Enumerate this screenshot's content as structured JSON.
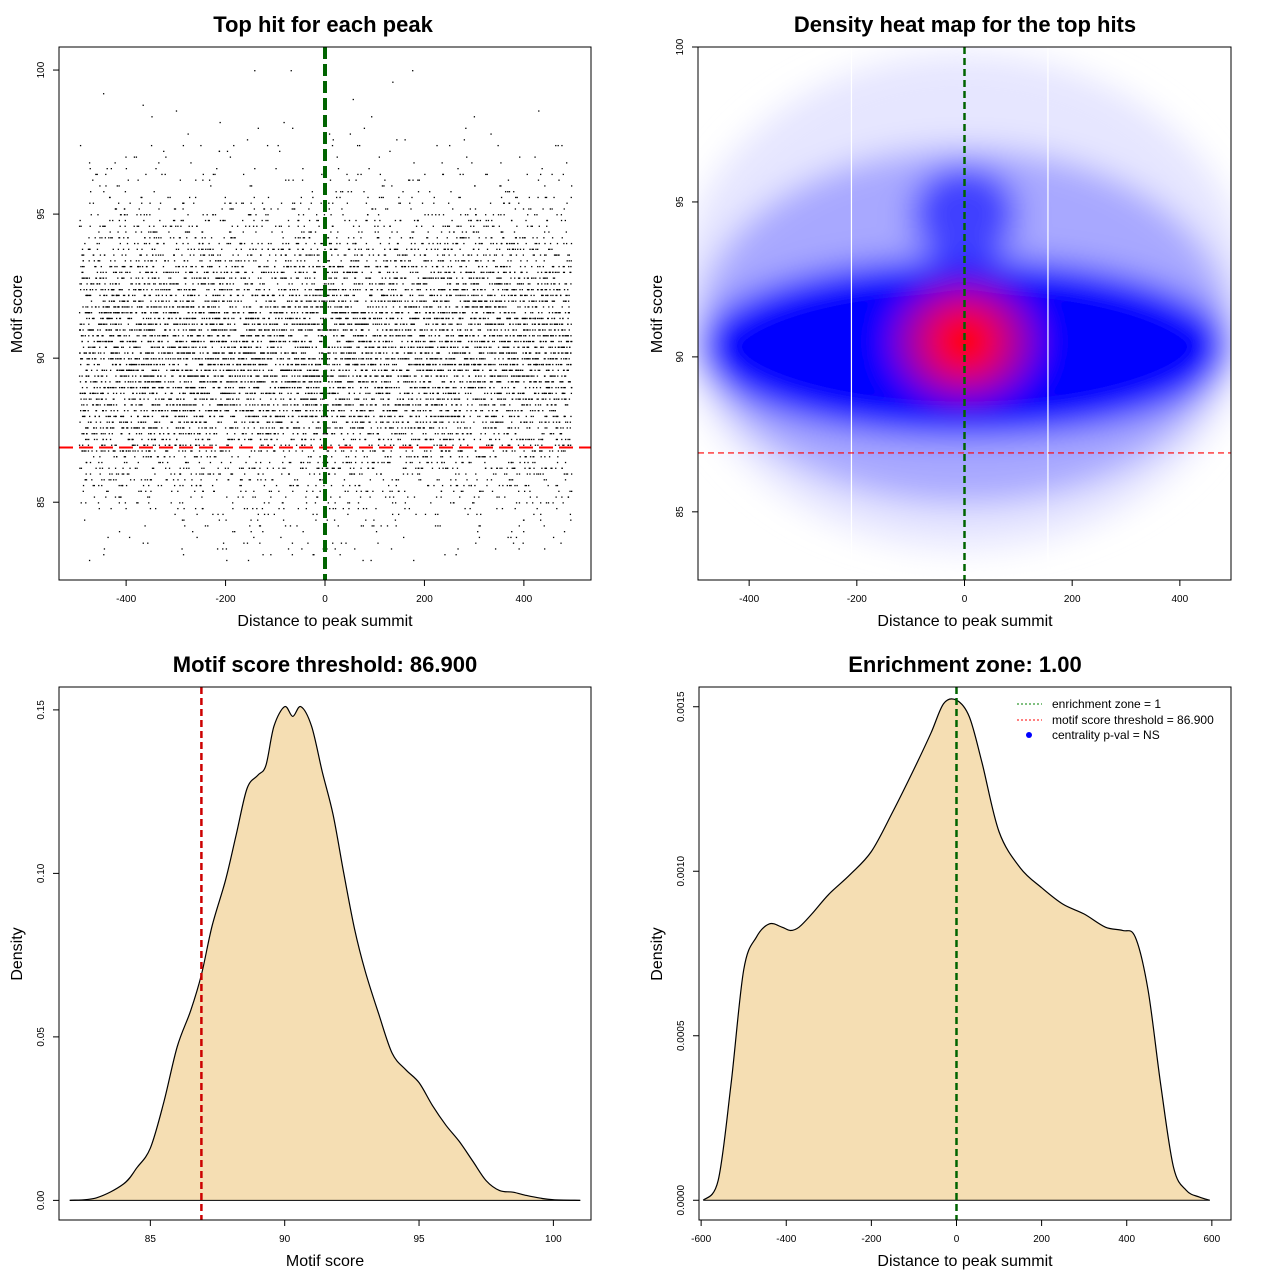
{
  "chart_data": [
    {
      "type": "scatter",
      "title": "Top hit for each peak",
      "xlabel": "Distance to peak summit",
      "ylabel": "Motif score",
      "xlim": [
        -535,
        535
      ],
      "ylim": [
        82.3,
        100.8
      ],
      "xticks": [
        "-400",
        "-200",
        "0",
        "200",
        "400"
      ],
      "yticks": [
        "85",
        "90",
        "95",
        "100"
      ],
      "point_cloud": {
        "n": 9000,
        "x_range": [
          -495,
          495
        ],
        "y_mean": 90.2,
        "y_sd": 2.6,
        "y_range": [
          83,
          100
        ],
        "center_tail": 2.2
      },
      "vline": {
        "x": 0,
        "color": "#006400",
        "style": "dashed"
      },
      "hline": {
        "y": 86.9,
        "color": "#ff0000",
        "style": "dashed"
      }
    },
    {
      "type": "heatmap",
      "title": "Density heat map for the top hits",
      "xlabel": "Distance to peak summit",
      "ylabel": "Motif score",
      "xlim": [
        -495,
        495
      ],
      "ylim": [
        82.8,
        100
      ],
      "xticks": [
        "-400",
        "-200",
        "0",
        "200",
        "400"
      ],
      "yticks": [
        "85",
        "90",
        "95",
        "100"
      ],
      "peak": {
        "x": 0,
        "y": 90.5
      },
      "density_scale": [
        "#ffffff",
        "#0000ff",
        "#ff0000"
      ],
      "white_vlines": [
        -210,
        155
      ],
      "vline": {
        "x": 0,
        "color": "#006400",
        "style": "dashed"
      },
      "hline": {
        "y": 86.9,
        "color": "#ff0000",
        "style": "dashed"
      }
    },
    {
      "type": "area",
      "title": "Motif score threshold: 86.900",
      "xlabel": "Motif score",
      "ylabel": "Density",
      "xlim": [
        81.6,
        101.4
      ],
      "ylim": [
        -0.006,
        0.157
      ],
      "xticks": [
        "85",
        "90",
        "95",
        "100"
      ],
      "yticks": [
        "0.00",
        "0.05",
        "0.10",
        "0.15"
      ],
      "x": [
        82.0,
        83.0,
        84.0,
        84.5,
        85.0,
        85.5,
        86.0,
        86.5,
        86.9,
        87.3,
        87.8,
        88.2,
        88.6,
        89.0,
        89.3,
        89.6,
        90.0,
        90.3,
        90.6,
        91.0,
        91.4,
        91.8,
        92.2,
        92.6,
        93.0,
        93.5,
        94.0,
        94.5,
        95.0,
        95.5,
        96.0,
        96.5,
        97.0,
        97.5,
        98.0,
        98.5,
        99.0,
        99.5,
        100.0,
        101.0
      ],
      "y": [
        0.0,
        0.0008,
        0.005,
        0.01,
        0.016,
        0.03,
        0.047,
        0.058,
        0.069,
        0.084,
        0.098,
        0.112,
        0.126,
        0.13,
        0.133,
        0.145,
        0.151,
        0.148,
        0.151,
        0.145,
        0.131,
        0.118,
        0.1,
        0.083,
        0.07,
        0.057,
        0.045,
        0.04,
        0.036,
        0.029,
        0.023,
        0.018,
        0.012,
        0.006,
        0.003,
        0.0025,
        0.0015,
        0.0007,
        0.0002,
        0.0
      ],
      "fill": "#f5deb3",
      "vline": {
        "x": 86.9,
        "color": "#cc0000",
        "style": "dashed"
      }
    },
    {
      "type": "area",
      "title": "Enrichment zone: 1.00",
      "xlabel": "Distance to peak summit",
      "ylabel": "Density",
      "xlim": [
        -605,
        645
      ],
      "ylim": [
        -6e-05,
        0.00156
      ],
      "xticks": [
        "-600",
        "-400",
        "-200",
        "0",
        "200",
        "400",
        "600"
      ],
      "yticks": [
        "0.0000",
        "0.0005",
        "0.0010",
        "0.0015"
      ],
      "x": [
        -595,
        -560,
        -530,
        -500,
        -470,
        -440,
        -410,
        -390,
        -370,
        -340,
        -300,
        -250,
        -200,
        -150,
        -100,
        -60,
        -30,
        0,
        30,
        60,
        100,
        150,
        200,
        250,
        300,
        350,
        390,
        420,
        450,
        480,
        510,
        540,
        570,
        595
      ],
      "y": [
        0.0,
        6e-05,
        0.00035,
        0.0007,
        0.0008,
        0.00084,
        0.00083,
        0.00082,
        0.00083,
        0.00087,
        0.00093,
        0.00099,
        0.00106,
        0.00118,
        0.00131,
        0.00142,
        0.00151,
        0.00152,
        0.00147,
        0.00133,
        0.00112,
        0.00101,
        0.00095,
        0.0009,
        0.00087,
        0.00083,
        0.00082,
        0.0008,
        0.00064,
        0.00035,
        0.0001,
        3e-05,
        1e-05,
        0.0
      ],
      "fill": "#f5deb3",
      "vline": {
        "x": 0,
        "color": "#006400",
        "style": "dashed"
      },
      "legend": [
        {
          "label": "enrichment zone = 1",
          "color": "#008000",
          "style": "dotted"
        },
        {
          "label": "motif score threshold = 86.900",
          "color": "#ff0000",
          "style": "dotted"
        },
        {
          "label": "centrality p-val = NS",
          "color": "#0000ff",
          "style": "point"
        }
      ]
    }
  ]
}
